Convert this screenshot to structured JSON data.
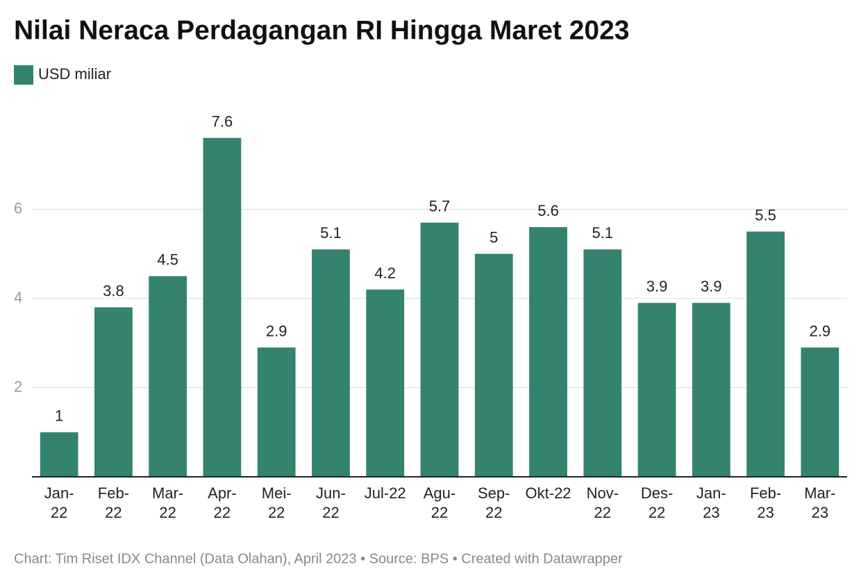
{
  "chart_data": {
    "type": "bar",
    "title": "Nilai Neraca Perdagangan RI Hingga Maret 2023",
    "legend": "USD miliar",
    "footer": "Chart: Tim Riset IDX Channel (Data Olahan), April 2023 • Source: BPS • Created with Datawrapper",
    "categories": [
      "Jan-22",
      "Feb-22",
      "Mar-22",
      "Apr-22",
      "Mei-22",
      "Jun-22",
      "Jul-22",
      "Agu-22",
      "Sep-22",
      "Okt-22",
      "Nov-22",
      "Des-22",
      "Jan-23",
      "Feb-23",
      "Mar-23"
    ],
    "values": [
      1,
      3.8,
      4.5,
      7.6,
      2.9,
      5.1,
      4.2,
      5.7,
      5,
      5.6,
      5.1,
      3.9,
      3.9,
      5.5,
      2.9
    ],
    "color": "#33836f",
    "ylim": [
      0,
      8
    ],
    "yticks": [
      2,
      4,
      6
    ],
    "grid": true
  }
}
